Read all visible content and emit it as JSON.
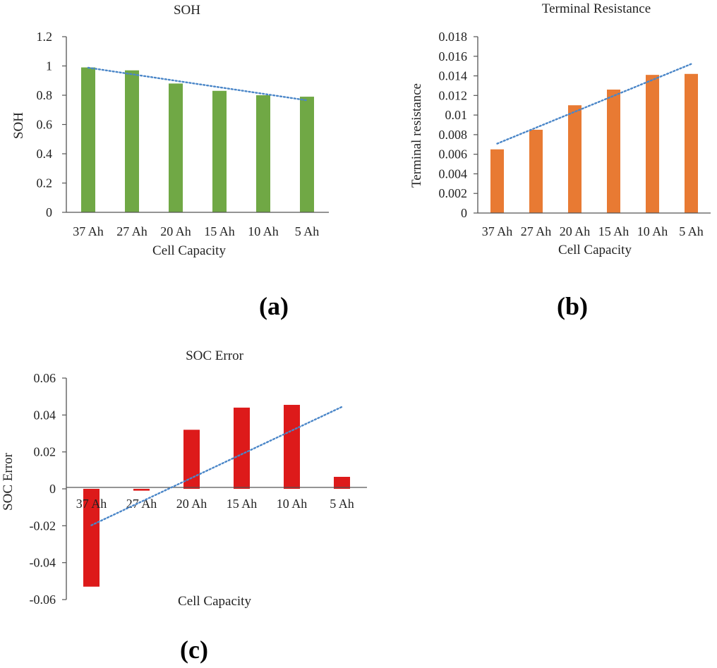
{
  "chart_data": [
    {
      "type": "bar",
      "title": "SOH",
      "xlabel": "Cell Capacity",
      "ylabel": "SOH",
      "panel_label": "(a)",
      "categories": [
        "37 Ah",
        "27 Ah",
        "20 Ah",
        "15 Ah",
        "10 Ah",
        "5 Ah"
      ],
      "values": [
        0.99,
        0.97,
        0.88,
        0.83,
        0.8,
        0.79
      ],
      "ylim": [
        0,
        1.2
      ],
      "yticks": [
        "0",
        "0.2",
        "0.4",
        "0.6",
        "0.8",
        "1",
        "1.2"
      ],
      "bar_color": "#70a845",
      "trendline": {
        "type": "linear",
        "style": "dotted",
        "color": "#4a86c8"
      },
      "grid": false,
      "legend": "none"
    },
    {
      "type": "bar",
      "title": "Terminal Resistance",
      "xlabel": "Cell Capacity",
      "ylabel": "Terminal resistance",
      "panel_label": "(b)",
      "categories": [
        "37 Ah",
        "27 Ah",
        "20 Ah",
        "15 Ah",
        "10 Ah",
        "5 Ah"
      ],
      "values": [
        0.0065,
        0.0085,
        0.011,
        0.0126,
        0.0141,
        0.0142
      ],
      "ylim": [
        0,
        0.018
      ],
      "yticks": [
        "0",
        "0.002",
        "0.004",
        "0.006",
        "0.008",
        "0.01",
        "0.012",
        "0.014",
        "0.016",
        "0.018"
      ],
      "bar_color": "#e87a33",
      "trendline": {
        "type": "linear",
        "style": "dotted",
        "color": "#4a86c8"
      },
      "grid": false,
      "legend": "none"
    },
    {
      "type": "bar",
      "title": "SOC Error",
      "xlabel": "Cell Capacity",
      "ylabel": "SOC Error",
      "panel_label": "(c)",
      "categories": [
        "37 Ah",
        "27 Ah",
        "20 Ah",
        "15 Ah",
        "10 Ah",
        "5 Ah"
      ],
      "values": [
        -0.053,
        -0.001,
        0.032,
        0.044,
        0.0455,
        0.0065
      ],
      "ylim": [
        -0.06,
        0.06
      ],
      "yticks": [
        "-0.06",
        "-0.04",
        "-0.02",
        "0",
        "0.02",
        "0.04",
        "0.06"
      ],
      "bar_color": "#dd1a1a",
      "trendline": {
        "type": "linear",
        "style": "dotted",
        "color": "#4a86c8"
      },
      "grid": false,
      "legend": "none"
    }
  ]
}
